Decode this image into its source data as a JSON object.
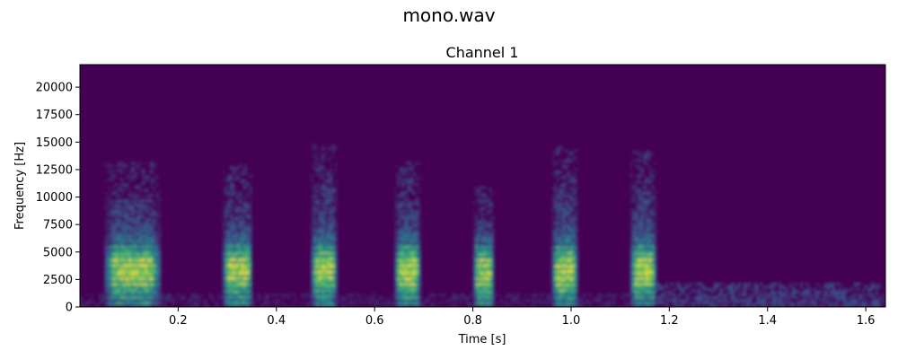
{
  "figure": {
    "title": "mono.wav"
  },
  "chart_data": {
    "type": "heatmap",
    "subtitle": "Channel 1",
    "xlabel": "Time [s]",
    "ylabel": "Frequency [Hz]",
    "xlim": [
      0.0,
      1.64
    ],
    "ylim": [
      0,
      22050
    ],
    "xticks": [
      0.2,
      0.4,
      0.6,
      0.8,
      1.0,
      1.2,
      1.4,
      1.6
    ],
    "xtick_labels": [
      "0.2",
      "0.4",
      "0.6",
      "0.8",
      "1.0",
      "1.2",
      "1.4",
      "1.6"
    ],
    "yticks": [
      0,
      2500,
      5000,
      7500,
      10000,
      12500,
      15000,
      17500,
      20000
    ],
    "ytick_labels": [
      "0",
      "2500",
      "5000",
      "7500",
      "10000",
      "12500",
      "15000",
      "17500",
      "20000"
    ],
    "colormap": "viridis",
    "background_color": "#440154",
    "grid": false,
    "bursts": [
      {
        "start_s": 0.05,
        "end_s": 0.16,
        "max_freq_hz": 13200,
        "peak_freq_hz": 3700
      },
      {
        "start_s": 0.29,
        "end_s": 0.35,
        "max_freq_hz": 13000,
        "peak_freq_hz": 3700
      },
      {
        "start_s": 0.47,
        "end_s": 0.52,
        "max_freq_hz": 14800,
        "peak_freq_hz": 3700
      },
      {
        "start_s": 0.64,
        "end_s": 0.69,
        "max_freq_hz": 13200,
        "peak_freq_hz": 3600
      },
      {
        "start_s": 0.8,
        "end_s": 0.84,
        "max_freq_hz": 11000,
        "peak_freq_hz": 3500
      },
      {
        "start_s": 0.96,
        "end_s": 1.01,
        "max_freq_hz": 14600,
        "peak_freq_hz": 3600
      },
      {
        "start_s": 1.12,
        "end_s": 1.17,
        "max_freq_hz": 14200,
        "peak_freq_hz": 3600
      }
    ],
    "faint_regions": [
      {
        "start_s": 1.17,
        "end_s": 1.63,
        "max_freq_hz": 2200
      }
    ]
  }
}
